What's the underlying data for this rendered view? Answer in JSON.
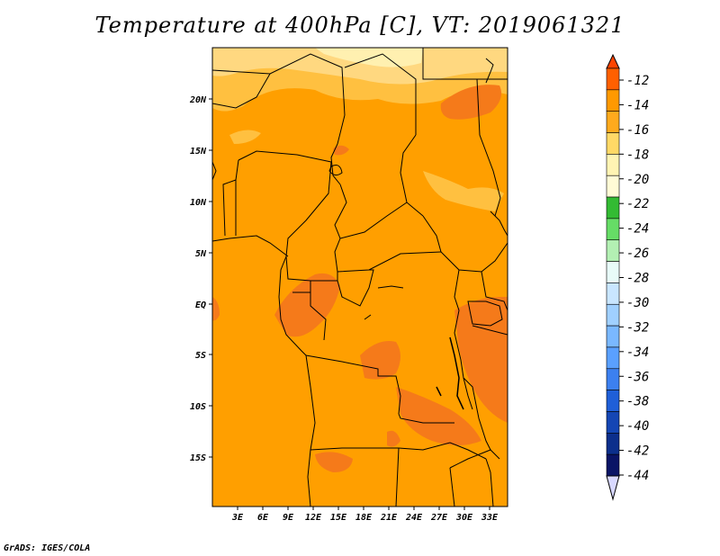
{
  "title": "Temperature at 400hPa [C], VT: 2019061321",
  "credit": "GrADS: IGES/COLA",
  "lon_ticks": [
    "3E",
    "6E",
    "9E",
    "12E",
    "15E",
    "18E",
    "21E",
    "24E",
    "27E",
    "30E",
    "33E"
  ],
  "lat_ticks": [
    "20N",
    "15N",
    "10N",
    "5N",
    "EQ",
    "5S",
    "10S",
    "15S"
  ],
  "colorbar": {
    "labels": [
      "-12",
      "-14",
      "-16",
      "-18",
      "-20",
      "-22",
      "-24",
      "-26",
      "-28",
      "-30",
      "-32",
      "-34",
      "-36",
      "-38",
      "-40",
      "-42",
      "-44"
    ],
    "colors": [
      "#ff6000",
      "#ff9900",
      "#ffaa1d",
      "#ffd966",
      "#fff4b3",
      "#fffbd6",
      "#33bb33",
      "#66dd66",
      "#b3f0b3",
      "#e8fbf8",
      "#c9e6ff",
      "#a0d0ff",
      "#7ab8ff",
      "#5aa0ff",
      "#3c80f0",
      "#1f5fd8",
      "#1446b4",
      "#0c2f8c",
      "#0a1466",
      "#d8d8ff"
    ]
  },
  "field": {
    "background": "#ff9f00",
    "colors": {
      "warm": "#f57a1a",
      "light": "#ffc040",
      "lighter": "#ffd880",
      "lightest": "#fff0b0"
    }
  }
}
